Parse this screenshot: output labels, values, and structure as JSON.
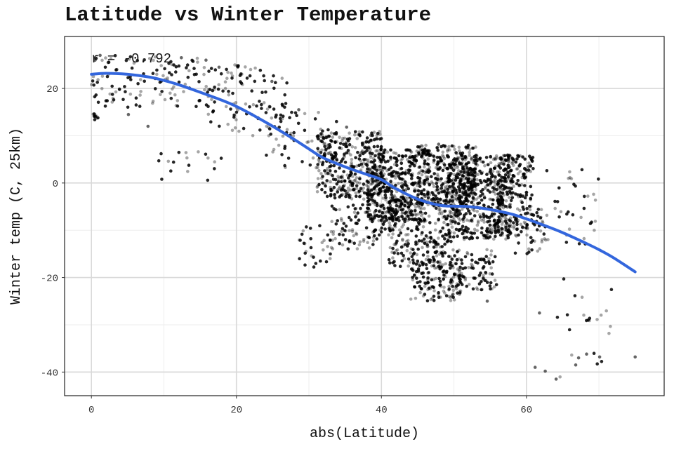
{
  "chart_data": {
    "type": "scatter",
    "title": "Latitude vs Winter Temperature",
    "xlabel": "abs(Latitude)",
    "ylabel": "Winter temp (C, 25km)",
    "xlim": [
      -3.7,
      79.0
    ],
    "ylim": [
      -45.0,
      31.0
    ],
    "x_ticks": [
      0,
      20,
      40,
      60
    ],
    "y_ticks": [
      -40,
      -20,
      0,
      20
    ],
    "x_tick_labels": [
      "0",
      "20",
      "40",
      "60"
    ],
    "y_tick_labels": [
      "-40",
      "-20",
      "0",
      "20"
    ],
    "grid": true,
    "annotation": "r = -0.792",
    "point_color": "#000000",
    "trend_color": "#3366dd",
    "trend_line": {
      "x": [
        0,
        2,
        5,
        8,
        10,
        12,
        15,
        18,
        20,
        22,
        25,
        28,
        30,
        32,
        35,
        38,
        40,
        42,
        45,
        48,
        50,
        52,
        55,
        58,
        60,
        62,
        65,
        68,
        70,
        72,
        75
      ],
      "y": [
        23.0,
        23.2,
        23.0,
        22.4,
        21.7,
        20.8,
        19.2,
        17.5,
        16.2,
        14.6,
        12.0,
        9.2,
        7.2,
        5.3,
        3.4,
        1.8,
        0.7,
        -1.2,
        -3.4,
        -4.7,
        -4.9,
        -5.0,
        -5.6,
        -6.6,
        -7.6,
        -8.7,
        -10.5,
        -12.6,
        -14.1,
        -15.8,
        -18.8
      ]
    },
    "series": [
      {
        "name": "",
        "clusters": [
          {
            "x": [
              0,
              16
            ],
            "y": [
              16,
              27
            ],
            "n": 120
          },
          {
            "x": [
              0.2,
              0.9
            ],
            "y": [
              13,
              15
            ],
            "n": 10
          },
          {
            "x": [
              16,
              27
            ],
            "y": [
              10,
              25
            ],
            "n": 110
          },
          {
            "x": [
              9,
              18
            ],
            "y": [
              0,
              7
            ],
            "n": 18
          },
          {
            "x": [
              24,
              34
            ],
            "y": [
              3,
              15
            ],
            "n": 55
          },
          {
            "x": [
              28,
              33
            ],
            "y": [
              -18,
              -9
            ],
            "n": 30
          },
          {
            "x": [
              31,
              40
            ],
            "y": [
              -3,
              11
            ],
            "n": 320
          },
          {
            "x": [
              33,
              42
            ],
            "y": [
              -14,
              -1
            ],
            "n": 140
          },
          {
            "x": [
              38,
              46
            ],
            "y": [
              -8,
              7
            ],
            "n": 420
          },
          {
            "x": [
              41,
              50
            ],
            "y": [
              -18,
              -3
            ],
            "n": 280
          },
          {
            "x": [
              45,
              53
            ],
            "y": [
              -5,
              8
            ],
            "n": 350
          },
          {
            "x": [
              49,
              58
            ],
            "y": [
              -12,
              6
            ],
            "n": 520
          },
          {
            "x": [
              44,
              51
            ],
            "y": [
              -25,
              -17
            ],
            "n": 130
          },
          {
            "x": [
              50,
              56
            ],
            "y": [
              -23,
              -14
            ],
            "n": 90
          },
          {
            "x": [
              56,
              61
            ],
            "y": [
              -10,
              6
            ],
            "n": 150
          },
          {
            "x": [
              58,
              63
            ],
            "y": [
              -15,
              -5
            ],
            "n": 50
          },
          {
            "x": [
              62,
              70
            ],
            "y": [
              -13,
              3
            ],
            "n": 40
          },
          {
            "x": [
              63,
              72
            ],
            "y": [
              -42,
              -20
            ],
            "n": 22
          }
        ],
        "points": {
          "x": [
            0.5,
            1.2,
            2.3,
            3.5,
            5.1,
            7.8,
            12.4,
            15.8,
            17.6,
            20.1,
            24.9,
            28.6,
            35.2,
            47.9,
            54.6,
            61.2,
            62.6,
            64.1,
            66.8,
            67.2,
            68.3,
            70.1,
            75.0,
            61.8
          ],
          "y": [
            26.0,
            27.0,
            25.5,
            24.0,
            14.5,
            12.0,
            26.5,
            26.0,
            24.5,
            24.8,
            21.5,
            15.5,
            11.8,
            8.2,
            -25.0,
            -39.0,
            -39.8,
            -41.5,
            -38.5,
            -37.0,
            -36.2,
            -36.8,
            -36.8,
            -27.5
          ]
        }
      }
    ]
  }
}
